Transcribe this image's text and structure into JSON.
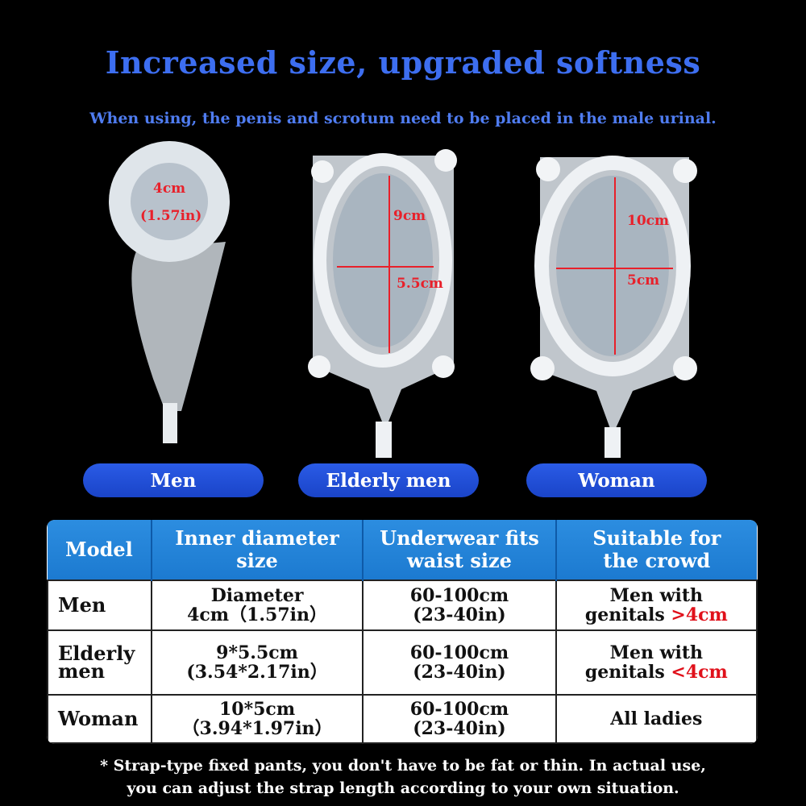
{
  "title": "Increased size, upgraded softness",
  "subtitle": "When using, the penis and scrotum need to be placed in the male urinal.",
  "products": [
    {
      "label": "Men",
      "dims": [
        "4cm",
        "(1.57in)"
      ]
    },
    {
      "label": "Elderly men",
      "dims": [
        "9cm",
        "5.5cm"
      ]
    },
    {
      "label": "Woman",
      "dims": [
        "10cm",
        "5cm"
      ]
    }
  ],
  "table": {
    "headers": [
      "Model",
      "Inner diameter size",
      "Underwear fits waist size",
      "Suitable for the crowd"
    ],
    "rows": [
      {
        "model": "Men",
        "size": [
          "Diameter",
          "4cm（1.57in）"
        ],
        "waist": [
          "60-100cm",
          "(23-40in)"
        ],
        "crowd": [
          "Men with",
          "genitals ",
          ">4cm"
        ]
      },
      {
        "model": "Elderly men",
        "size": [
          "9*5.5cm",
          "(3.54*2.17in）"
        ],
        "waist": [
          "60-100cm",
          "(23-40in)"
        ],
        "crowd": [
          "Men with",
          "genitals ",
          "<4cm"
        ]
      },
      {
        "model": "Woman",
        "size": [
          "10*5cm",
          "（3.94*1.97in）"
        ],
        "waist": [
          "60-100cm",
          "(23-40in)"
        ],
        "crowd": [
          "All ladies",
          "",
          ""
        ]
      }
    ]
  },
  "footer": [
    "* Strap-type fixed pants, you don't have to be fat or thin. In actual use,",
    "you can adjust the strap length according to your own situation."
  ],
  "colors": {
    "accent": "#3d6ef0",
    "pill": "#1f4fd8",
    "table_header": "#2a8fd8",
    "highlight": "#e0101a"
  }
}
